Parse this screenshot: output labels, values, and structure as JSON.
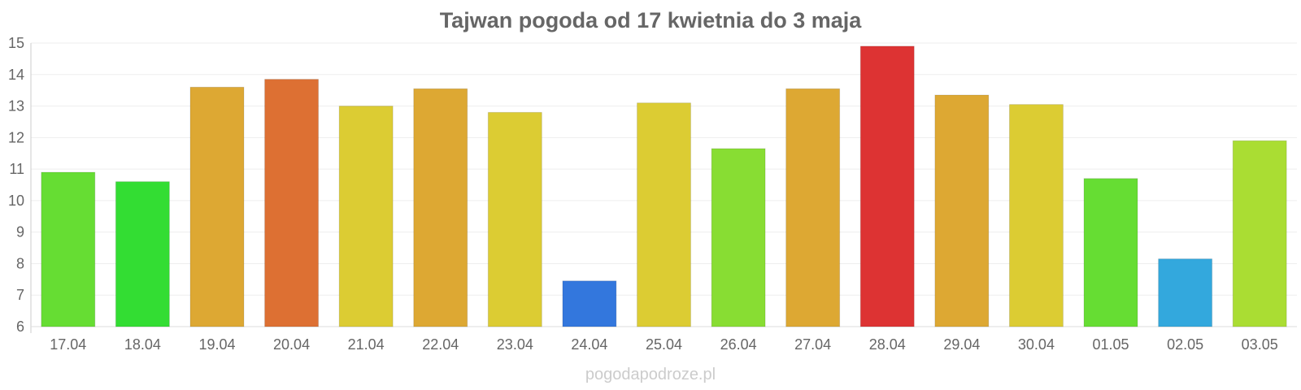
{
  "chart_data": {
    "type": "bar",
    "title": "Tajwan pogoda od 17 kwietnia do 3 maja",
    "xlabel": "",
    "ylabel": "",
    "ylim": [
      6,
      15
    ],
    "yticks": [
      "6",
      "7",
      "8",
      "9",
      "10",
      "11",
      "12",
      "13",
      "14",
      "15"
    ],
    "grid": true,
    "categories": [
      "17.04",
      "18.04",
      "19.04",
      "20.04",
      "21.04",
      "22.04",
      "23.04",
      "24.04",
      "25.04",
      "26.04",
      "27.04",
      "28.04",
      "29.04",
      "30.04",
      "01.05",
      "02.05",
      "03.05"
    ],
    "values": [
      10.9,
      10.6,
      13.6,
      13.85,
      13.0,
      13.55,
      12.8,
      7.45,
      13.1,
      11.65,
      13.55,
      14.9,
      13.35,
      13.05,
      10.7,
      8.15,
      11.9
    ],
    "colors": [
      "#66dd33",
      "#33dd33",
      "#dda833",
      "#dd7033",
      "#dccc33",
      "#dda833",
      "#dccc33",
      "#3377dd",
      "#dccc33",
      "#88dd33",
      "#dda833",
      "#dd3333",
      "#dda833",
      "#dccc33",
      "#66dd33",
      "#33a8dd",
      "#aadd33"
    ]
  },
  "watermark": "pogodapodroze.pl"
}
